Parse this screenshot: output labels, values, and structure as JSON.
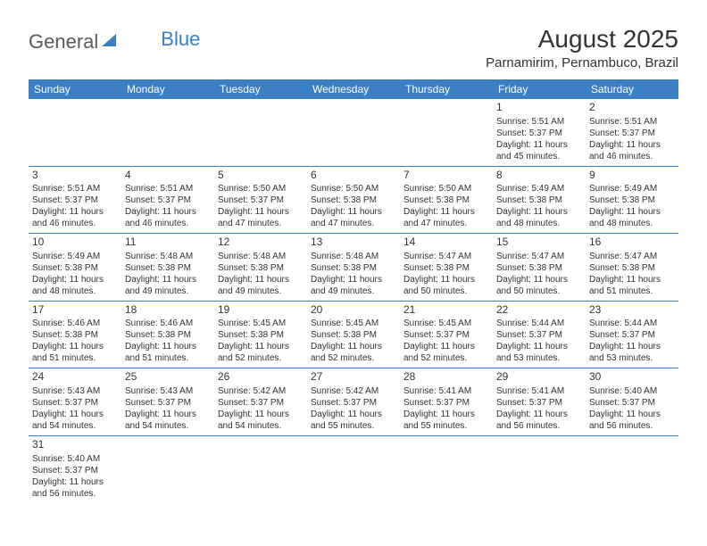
{
  "logo": {
    "text1": "General",
    "text2": "Blue"
  },
  "title": "August 2025",
  "location": "Parnamirim, Pernambuco, Brazil",
  "colors": {
    "header_bg": "#3b7fc4",
    "header_text": "#ffffff",
    "border": "#3b7fc4",
    "text": "#333333",
    "logo_gray": "#5a5a5a",
    "logo_blue": "#3b7fc4",
    "background": "#ffffff"
  },
  "typography": {
    "title_fontsize": 28,
    "location_fontsize": 15,
    "header_fontsize": 12,
    "daynum_fontsize": 12,
    "cell_fontsize": 10,
    "font_family": "Arial"
  },
  "days_of_week": [
    "Sunday",
    "Monday",
    "Tuesday",
    "Wednesday",
    "Thursday",
    "Friday",
    "Saturday"
  ],
  "weeks": [
    [
      null,
      null,
      null,
      null,
      null,
      {
        "num": "1",
        "sunrise": "Sunrise: 5:51 AM",
        "sunset": "Sunset: 5:37 PM",
        "daylight": "Daylight: 11 hours and 45 minutes."
      },
      {
        "num": "2",
        "sunrise": "Sunrise: 5:51 AM",
        "sunset": "Sunset: 5:37 PM",
        "daylight": "Daylight: 11 hours and 46 minutes."
      }
    ],
    [
      {
        "num": "3",
        "sunrise": "Sunrise: 5:51 AM",
        "sunset": "Sunset: 5:37 PM",
        "daylight": "Daylight: 11 hours and 46 minutes."
      },
      {
        "num": "4",
        "sunrise": "Sunrise: 5:51 AM",
        "sunset": "Sunset: 5:37 PM",
        "daylight": "Daylight: 11 hours and 46 minutes."
      },
      {
        "num": "5",
        "sunrise": "Sunrise: 5:50 AM",
        "sunset": "Sunset: 5:37 PM",
        "daylight": "Daylight: 11 hours and 47 minutes."
      },
      {
        "num": "6",
        "sunrise": "Sunrise: 5:50 AM",
        "sunset": "Sunset: 5:38 PM",
        "daylight": "Daylight: 11 hours and 47 minutes."
      },
      {
        "num": "7",
        "sunrise": "Sunrise: 5:50 AM",
        "sunset": "Sunset: 5:38 PM",
        "daylight": "Daylight: 11 hours and 47 minutes."
      },
      {
        "num": "8",
        "sunrise": "Sunrise: 5:49 AM",
        "sunset": "Sunset: 5:38 PM",
        "daylight": "Daylight: 11 hours and 48 minutes."
      },
      {
        "num": "9",
        "sunrise": "Sunrise: 5:49 AM",
        "sunset": "Sunset: 5:38 PM",
        "daylight": "Daylight: 11 hours and 48 minutes."
      }
    ],
    [
      {
        "num": "10",
        "sunrise": "Sunrise: 5:49 AM",
        "sunset": "Sunset: 5:38 PM",
        "daylight": "Daylight: 11 hours and 48 minutes."
      },
      {
        "num": "11",
        "sunrise": "Sunrise: 5:48 AM",
        "sunset": "Sunset: 5:38 PM",
        "daylight": "Daylight: 11 hours and 49 minutes."
      },
      {
        "num": "12",
        "sunrise": "Sunrise: 5:48 AM",
        "sunset": "Sunset: 5:38 PM",
        "daylight": "Daylight: 11 hours and 49 minutes."
      },
      {
        "num": "13",
        "sunrise": "Sunrise: 5:48 AM",
        "sunset": "Sunset: 5:38 PM",
        "daylight": "Daylight: 11 hours and 49 minutes."
      },
      {
        "num": "14",
        "sunrise": "Sunrise: 5:47 AM",
        "sunset": "Sunset: 5:38 PM",
        "daylight": "Daylight: 11 hours and 50 minutes."
      },
      {
        "num": "15",
        "sunrise": "Sunrise: 5:47 AM",
        "sunset": "Sunset: 5:38 PM",
        "daylight": "Daylight: 11 hours and 50 minutes."
      },
      {
        "num": "16",
        "sunrise": "Sunrise: 5:47 AM",
        "sunset": "Sunset: 5:38 PM",
        "daylight": "Daylight: 11 hours and 51 minutes."
      }
    ],
    [
      {
        "num": "17",
        "sunrise": "Sunrise: 5:46 AM",
        "sunset": "Sunset: 5:38 PM",
        "daylight": "Daylight: 11 hours and 51 minutes."
      },
      {
        "num": "18",
        "sunrise": "Sunrise: 5:46 AM",
        "sunset": "Sunset: 5:38 PM",
        "daylight": "Daylight: 11 hours and 51 minutes."
      },
      {
        "num": "19",
        "sunrise": "Sunrise: 5:45 AM",
        "sunset": "Sunset: 5:38 PM",
        "daylight": "Daylight: 11 hours and 52 minutes."
      },
      {
        "num": "20",
        "sunrise": "Sunrise: 5:45 AM",
        "sunset": "Sunset: 5:38 PM",
        "daylight": "Daylight: 11 hours and 52 minutes."
      },
      {
        "num": "21",
        "sunrise": "Sunrise: 5:45 AM",
        "sunset": "Sunset: 5:37 PM",
        "daylight": "Daylight: 11 hours and 52 minutes."
      },
      {
        "num": "22",
        "sunrise": "Sunrise: 5:44 AM",
        "sunset": "Sunset: 5:37 PM",
        "daylight": "Daylight: 11 hours and 53 minutes."
      },
      {
        "num": "23",
        "sunrise": "Sunrise: 5:44 AM",
        "sunset": "Sunset: 5:37 PM",
        "daylight": "Daylight: 11 hours and 53 minutes."
      }
    ],
    [
      {
        "num": "24",
        "sunrise": "Sunrise: 5:43 AM",
        "sunset": "Sunset: 5:37 PM",
        "daylight": "Daylight: 11 hours and 54 minutes."
      },
      {
        "num": "25",
        "sunrise": "Sunrise: 5:43 AM",
        "sunset": "Sunset: 5:37 PM",
        "daylight": "Daylight: 11 hours and 54 minutes."
      },
      {
        "num": "26",
        "sunrise": "Sunrise: 5:42 AM",
        "sunset": "Sunset: 5:37 PM",
        "daylight": "Daylight: 11 hours and 54 minutes."
      },
      {
        "num": "27",
        "sunrise": "Sunrise: 5:42 AM",
        "sunset": "Sunset: 5:37 PM",
        "daylight": "Daylight: 11 hours and 55 minutes."
      },
      {
        "num": "28",
        "sunrise": "Sunrise: 5:41 AM",
        "sunset": "Sunset: 5:37 PM",
        "daylight": "Daylight: 11 hours and 55 minutes."
      },
      {
        "num": "29",
        "sunrise": "Sunrise: 5:41 AM",
        "sunset": "Sunset: 5:37 PM",
        "daylight": "Daylight: 11 hours and 56 minutes."
      },
      {
        "num": "30",
        "sunrise": "Sunrise: 5:40 AM",
        "sunset": "Sunset: 5:37 PM",
        "daylight": "Daylight: 11 hours and 56 minutes."
      }
    ],
    [
      {
        "num": "31",
        "sunrise": "Sunrise: 5:40 AM",
        "sunset": "Sunset: 5:37 PM",
        "daylight": "Daylight: 11 hours and 56 minutes."
      },
      null,
      null,
      null,
      null,
      null,
      null
    ]
  ]
}
